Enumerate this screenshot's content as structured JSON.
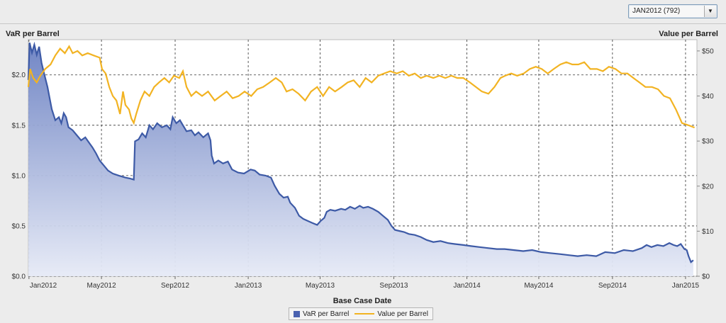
{
  "filter": {
    "selected": "JAN2012 (792)"
  },
  "chart_data": {
    "type": "line",
    "title": "",
    "xlabel": "Base Case Date",
    "ylabel_left": "VaR per Barrel",
    "ylabel_right": "Value per Barrel",
    "x_ticks": [
      "Jan2012",
      "May2012",
      "Sep2012",
      "Jan2013",
      "May2013",
      "Sep2013",
      "Jan2014",
      "May2014",
      "Sep2014",
      "Jan2015"
    ],
    "x_tick_dates": [
      "2012-01-01",
      "2012-05-01",
      "2012-09-01",
      "2013-01-01",
      "2013-05-01",
      "2013-09-01",
      "2014-01-01",
      "2014-05-01",
      "2014-09-01",
      "2015-01-01"
    ],
    "xlim": [
      "2011-12-31",
      "2015-01-20"
    ],
    "y_left_ticks": [
      "$0.0",
      "$0.5",
      "$1.0",
      "$1.5",
      "$2.0"
    ],
    "y_left_lim": [
      0,
      2.35
    ],
    "y_right_ticks": [
      "$0",
      "$10",
      "$20",
      "$30",
      "$40",
      "$50"
    ],
    "y_right_lim": [
      0,
      52.5
    ],
    "grid": true,
    "legend_position": "bottom",
    "series": [
      {
        "name": "VaR per Barrel",
        "axis": "left",
        "style": "area",
        "color": "#3d5aa6",
        "points": [
          [
            "2011-12-31",
            1.95
          ],
          [
            "2012-01-02",
            2.32
          ],
          [
            "2012-01-06",
            2.22
          ],
          [
            "2012-01-10",
            2.3
          ],
          [
            "2012-01-14",
            2.2
          ],
          [
            "2012-01-18",
            2.28
          ],
          [
            "2012-01-22",
            2.12
          ],
          [
            "2012-01-26",
            2.02
          ],
          [
            "2012-02-01",
            1.88
          ],
          [
            "2012-02-08",
            1.66
          ],
          [
            "2012-02-14",
            1.55
          ],
          [
            "2012-02-20",
            1.58
          ],
          [
            "2012-02-24",
            1.52
          ],
          [
            "2012-02-28",
            1.62
          ],
          [
            "2012-03-03",
            1.58
          ],
          [
            "2012-03-07",
            1.48
          ],
          [
            "2012-03-14",
            1.45
          ],
          [
            "2012-03-21",
            1.4
          ],
          [
            "2012-03-28",
            1.35
          ],
          [
            "2012-04-04",
            1.38
          ],
          [
            "2012-04-10",
            1.33
          ],
          [
            "2012-04-16",
            1.28
          ],
          [
            "2012-04-22",
            1.22
          ],
          [
            "2012-04-28",
            1.15
          ],
          [
            "2012-05-05",
            1.1
          ],
          [
            "2012-05-12",
            1.05
          ],
          [
            "2012-05-20",
            1.02
          ],
          [
            "2012-05-30",
            1.0
          ],
          [
            "2012-06-10",
            0.98
          ],
          [
            "2012-06-18",
            0.97
          ],
          [
            "2012-06-24",
            0.96
          ],
          [
            "2012-06-26",
            1.34
          ],
          [
            "2012-07-02",
            1.36
          ],
          [
            "2012-07-08",
            1.42
          ],
          [
            "2012-07-14",
            1.38
          ],
          [
            "2012-07-20",
            1.5
          ],
          [
            "2012-07-26",
            1.46
          ],
          [
            "2012-08-02",
            1.52
          ],
          [
            "2012-08-10",
            1.48
          ],
          [
            "2012-08-18",
            1.5
          ],
          [
            "2012-08-24",
            1.46
          ],
          [
            "2012-08-28",
            1.58
          ],
          [
            "2012-09-03",
            1.52
          ],
          [
            "2012-09-09",
            1.55
          ],
          [
            "2012-09-14",
            1.5
          ],
          [
            "2012-09-20",
            1.44
          ],
          [
            "2012-09-28",
            1.45
          ],
          [
            "2012-10-04",
            1.4
          ],
          [
            "2012-10-10",
            1.43
          ],
          [
            "2012-10-18",
            1.38
          ],
          [
            "2012-10-26",
            1.42
          ],
          [
            "2012-10-30",
            1.35
          ],
          [
            "2012-11-01",
            1.2
          ],
          [
            "2012-11-05",
            1.12
          ],
          [
            "2012-11-12",
            1.15
          ],
          [
            "2012-11-20",
            1.12
          ],
          [
            "2012-11-28",
            1.14
          ],
          [
            "2012-12-05",
            1.06
          ],
          [
            "2012-12-15",
            1.03
          ],
          [
            "2012-12-25",
            1.02
          ],
          [
            "2013-01-05",
            1.06
          ],
          [
            "2013-01-12",
            1.05
          ],
          [
            "2013-01-20",
            1.01
          ],
          [
            "2013-01-30",
            1.0
          ],
          [
            "2013-02-08",
            0.98
          ],
          [
            "2013-02-14",
            0.9
          ],
          [
            "2013-02-22",
            0.82
          ],
          [
            "2013-03-01",
            0.78
          ],
          [
            "2013-03-08",
            0.79
          ],
          [
            "2013-03-12",
            0.73
          ],
          [
            "2013-03-20",
            0.68
          ],
          [
            "2013-03-27",
            0.6
          ],
          [
            "2013-04-03",
            0.57
          ],
          [
            "2013-04-10",
            0.55
          ],
          [
            "2013-04-18",
            0.53
          ],
          [
            "2013-04-26",
            0.51
          ],
          [
            "2013-05-02",
            0.55
          ],
          [
            "2013-05-08",
            0.58
          ],
          [
            "2013-05-12",
            0.64
          ],
          [
            "2013-05-18",
            0.66
          ],
          [
            "2013-05-26",
            0.65
          ],
          [
            "2013-06-05",
            0.67
          ],
          [
            "2013-06-12",
            0.66
          ],
          [
            "2013-06-20",
            0.69
          ],
          [
            "2013-06-28",
            0.67
          ],
          [
            "2013-07-06",
            0.7
          ],
          [
            "2013-07-12",
            0.68
          ],
          [
            "2013-07-20",
            0.69
          ],
          [
            "2013-07-28",
            0.67
          ],
          [
            "2013-08-06",
            0.64
          ],
          [
            "2013-08-14",
            0.6
          ],
          [
            "2013-08-22",
            0.56
          ],
          [
            "2013-08-28",
            0.5
          ],
          [
            "2013-09-03",
            0.46
          ],
          [
            "2013-09-10",
            0.45
          ],
          [
            "2013-09-18",
            0.44
          ],
          [
            "2013-09-26",
            0.42
          ],
          [
            "2013-10-06",
            0.41
          ],
          [
            "2013-10-16",
            0.39
          ],
          [
            "2013-10-26",
            0.36
          ],
          [
            "2013-11-06",
            0.34
          ],
          [
            "2013-11-18",
            0.35
          ],
          [
            "2013-11-30",
            0.33
          ],
          [
            "2013-12-12",
            0.32
          ],
          [
            "2013-12-26",
            0.31
          ],
          [
            "2014-01-08",
            0.3
          ],
          [
            "2014-01-22",
            0.29
          ],
          [
            "2014-02-05",
            0.28
          ],
          [
            "2014-02-20",
            0.27
          ],
          [
            "2014-03-05",
            0.27
          ],
          [
            "2014-03-20",
            0.26
          ],
          [
            "2014-04-05",
            0.25
          ],
          [
            "2014-04-20",
            0.26
          ],
          [
            "2014-05-05",
            0.24
          ],
          [
            "2014-05-20",
            0.23
          ],
          [
            "2014-06-05",
            0.22
          ],
          [
            "2014-06-20",
            0.21
          ],
          [
            "2014-07-05",
            0.2
          ],
          [
            "2014-07-20",
            0.21
          ],
          [
            "2014-08-05",
            0.2
          ],
          [
            "2014-08-20",
            0.24
          ],
          [
            "2014-09-05",
            0.23
          ],
          [
            "2014-09-20",
            0.26
          ],
          [
            "2014-10-05",
            0.25
          ],
          [
            "2014-10-20",
            0.28
          ],
          [
            "2014-10-28",
            0.31
          ],
          [
            "2014-11-05",
            0.29
          ],
          [
            "2014-11-15",
            0.31
          ],
          [
            "2014-11-25",
            0.3
          ],
          [
            "2014-12-05",
            0.33
          ],
          [
            "2014-12-12",
            0.31
          ],
          [
            "2014-12-18",
            0.3
          ],
          [
            "2014-12-24",
            0.32
          ],
          [
            "2014-12-30",
            0.27
          ],
          [
            "2015-01-03",
            0.26
          ],
          [
            "2015-01-06",
            0.2
          ],
          [
            "2015-01-10",
            0.14
          ],
          [
            "2015-01-14",
            0.16
          ]
        ]
      },
      {
        "name": "Value per Barrel",
        "axis": "right",
        "style": "line",
        "color": "#f2b322",
        "points": [
          [
            "2011-12-31",
            42
          ],
          [
            "2012-01-03",
            46
          ],
          [
            "2012-01-08",
            44
          ],
          [
            "2012-01-14",
            43
          ],
          [
            "2012-01-20",
            44.5
          ],
          [
            "2012-01-28",
            46
          ],
          [
            "2012-02-06",
            47
          ],
          [
            "2012-02-14",
            49
          ],
          [
            "2012-02-22",
            50.5
          ],
          [
            "2012-03-01",
            49.5
          ],
          [
            "2012-03-08",
            51
          ],
          [
            "2012-03-14",
            49.5
          ],
          [
            "2012-03-22",
            50
          ],
          [
            "2012-03-30",
            49
          ],
          [
            "2012-04-08",
            49.5
          ],
          [
            "2012-04-18",
            49
          ],
          [
            "2012-04-28",
            48.5
          ],
          [
            "2012-05-02",
            46
          ],
          [
            "2012-05-08",
            45
          ],
          [
            "2012-05-14",
            42
          ],
          [
            "2012-05-20",
            40
          ],
          [
            "2012-05-26",
            39
          ],
          [
            "2012-06-01",
            36
          ],
          [
            "2012-06-06",
            41
          ],
          [
            "2012-06-10",
            38
          ],
          [
            "2012-06-16",
            37
          ],
          [
            "2012-06-20",
            35
          ],
          [
            "2012-06-24",
            34
          ],
          [
            "2012-06-28",
            36
          ],
          [
            "2012-07-05",
            39
          ],
          [
            "2012-07-12",
            41
          ],
          [
            "2012-07-20",
            40
          ],
          [
            "2012-07-28",
            42
          ],
          [
            "2012-08-05",
            43
          ],
          [
            "2012-08-14",
            44
          ],
          [
            "2012-08-22",
            43
          ],
          [
            "2012-08-30",
            44.5
          ],
          [
            "2012-09-08",
            44
          ],
          [
            "2012-09-14",
            45.5
          ],
          [
            "2012-09-20",
            42
          ],
          [
            "2012-09-28",
            40
          ],
          [
            "2012-10-06",
            41
          ],
          [
            "2012-10-16",
            40
          ],
          [
            "2012-10-26",
            41
          ],
          [
            "2012-11-06",
            39
          ],
          [
            "2012-11-16",
            40
          ],
          [
            "2012-11-26",
            41
          ],
          [
            "2012-12-06",
            39.5
          ],
          [
            "2012-12-16",
            40
          ],
          [
            "2012-12-26",
            41
          ],
          [
            "2013-01-06",
            40
          ],
          [
            "2013-01-16",
            41.5
          ],
          [
            "2013-01-26",
            42
          ],
          [
            "2013-02-06",
            43
          ],
          [
            "2013-02-16",
            44
          ],
          [
            "2013-02-26",
            43
          ],
          [
            "2013-03-06",
            41
          ],
          [
            "2013-03-16",
            41.5
          ],
          [
            "2013-03-26",
            40.5
          ],
          [
            "2013-04-06",
            39
          ],
          [
            "2013-04-16",
            41
          ],
          [
            "2013-04-26",
            42
          ],
          [
            "2013-05-06",
            40
          ],
          [
            "2013-05-16",
            42
          ],
          [
            "2013-05-26",
            41
          ],
          [
            "2013-06-06",
            42
          ],
          [
            "2013-06-16",
            43
          ],
          [
            "2013-06-26",
            43.5
          ],
          [
            "2013-07-06",
            42
          ],
          [
            "2013-07-16",
            44
          ],
          [
            "2013-07-26",
            43
          ],
          [
            "2013-08-06",
            44.5
          ],
          [
            "2013-08-16",
            45
          ],
          [
            "2013-08-26",
            45.5
          ],
          [
            "2013-09-06",
            45
          ],
          [
            "2013-09-16",
            45.5
          ],
          [
            "2013-09-26",
            44.5
          ],
          [
            "2013-10-06",
            45
          ],
          [
            "2013-10-16",
            44
          ],
          [
            "2013-10-26",
            44.5
          ],
          [
            "2013-11-06",
            44
          ],
          [
            "2013-11-16",
            44.5
          ],
          [
            "2013-11-26",
            44
          ],
          [
            "2013-12-06",
            44.5
          ],
          [
            "2013-12-16",
            44
          ],
          [
            "2013-12-26",
            44
          ],
          [
            "2014-01-06",
            43
          ],
          [
            "2014-01-16",
            42
          ],
          [
            "2014-01-26",
            41
          ],
          [
            "2014-02-06",
            40.5
          ],
          [
            "2014-02-16",
            42
          ],
          [
            "2014-02-26",
            44
          ],
          [
            "2014-03-06",
            44.5
          ],
          [
            "2014-03-16",
            45
          ],
          [
            "2014-03-26",
            44.5
          ],
          [
            "2014-04-06",
            45
          ],
          [
            "2014-04-16",
            46
          ],
          [
            "2014-04-26",
            46.5
          ],
          [
            "2014-05-06",
            46
          ],
          [
            "2014-05-16",
            45
          ],
          [
            "2014-05-26",
            46
          ],
          [
            "2014-06-06",
            47
          ],
          [
            "2014-06-16",
            47.5
          ],
          [
            "2014-06-26",
            47
          ],
          [
            "2014-07-06",
            47
          ],
          [
            "2014-07-16",
            47.5
          ],
          [
            "2014-07-26",
            46
          ],
          [
            "2014-08-06",
            46
          ],
          [
            "2014-08-16",
            45.5
          ],
          [
            "2014-08-26",
            46.5
          ],
          [
            "2014-09-06",
            46
          ],
          [
            "2014-09-16",
            45
          ],
          [
            "2014-09-26",
            45
          ],
          [
            "2014-10-06",
            44
          ],
          [
            "2014-10-16",
            43
          ],
          [
            "2014-10-26",
            42
          ],
          [
            "2014-11-06",
            42
          ],
          [
            "2014-11-16",
            41.5
          ],
          [
            "2014-11-26",
            40
          ],
          [
            "2014-12-06",
            39.5
          ],
          [
            "2014-12-16",
            37
          ],
          [
            "2014-12-26",
            34
          ],
          [
            "2015-01-06",
            33.5
          ],
          [
            "2015-01-16",
            33
          ]
        ]
      }
    ]
  }
}
